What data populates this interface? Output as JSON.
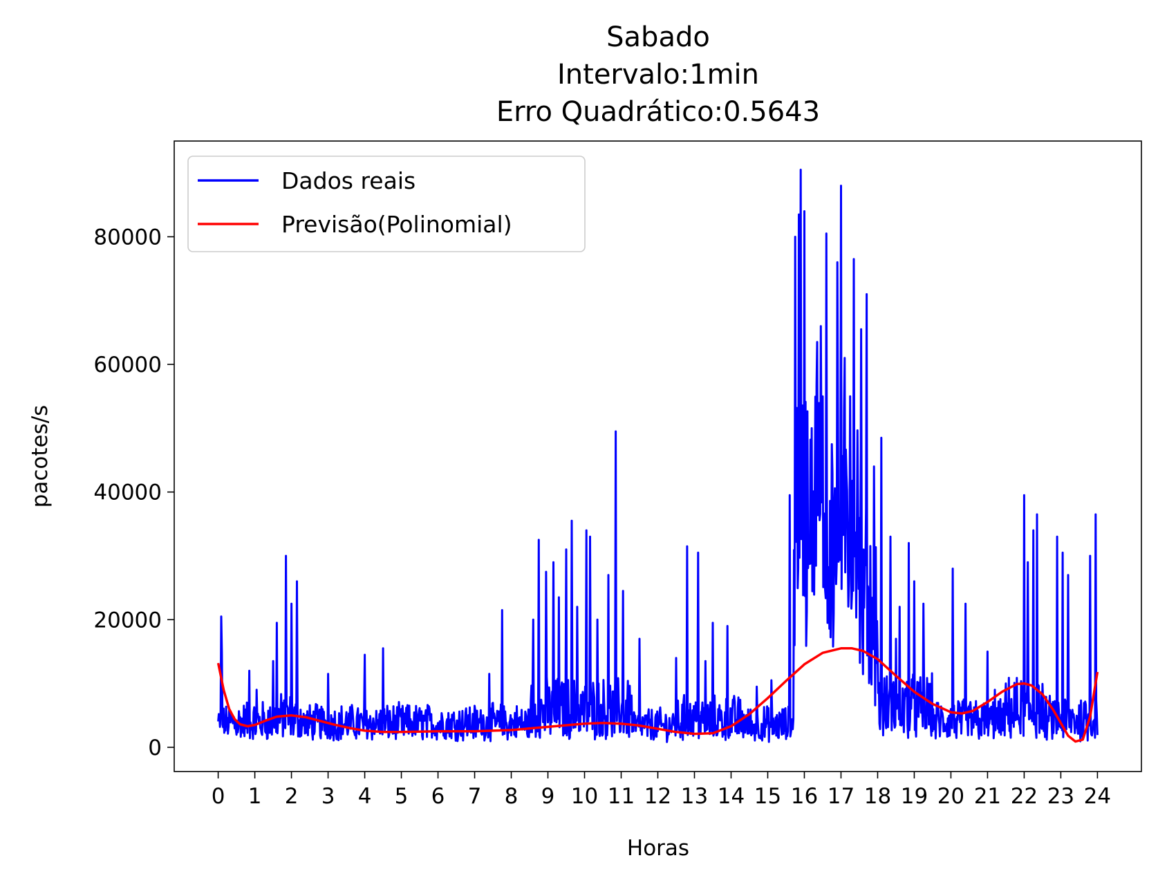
{
  "chart_data": {
    "type": "line",
    "title_lines": [
      "Sabado",
      "Intervalo:1min",
      "Erro Quadrático:0.5643"
    ],
    "xlabel": "Horas",
    "ylabel": "pacotes/s",
    "xlim": [
      -1.2,
      25.2
    ],
    "ylim": [
      -3800,
      95000
    ],
    "x_ticks": [
      0,
      1,
      2,
      3,
      4,
      5,
      6,
      7,
      8,
      9,
      10,
      11,
      12,
      13,
      14,
      15,
      16,
      17,
      18,
      19,
      20,
      21,
      22,
      23,
      24
    ],
    "x_tick_labels": [
      "0",
      "1",
      "2",
      "3",
      "4",
      "5",
      "6",
      "7",
      "8",
      "9",
      "10",
      "11",
      "12",
      "13",
      "14",
      "15",
      "16",
      "17",
      "18",
      "19",
      "20",
      "21",
      "22",
      "23",
      "24"
    ],
    "y_ticks": [
      0,
      20000,
      40000,
      60000,
      80000
    ],
    "y_tick_labels": [
      "0",
      "20000",
      "40000",
      "60000",
      "80000"
    ],
    "grid": false,
    "legend_position": "top-left",
    "series": [
      {
        "name": "Dados reais",
        "color": "#0000ff",
        "segments": [
          {
            "start": 0.0,
            "end": 0.3,
            "base": 3000,
            "amp": 4000
          },
          {
            "start": 0.3,
            "end": 1.5,
            "base": 2200,
            "amp": 5500
          },
          {
            "start": 1.5,
            "end": 2.3,
            "base": 2500,
            "amp": 6500
          },
          {
            "start": 2.3,
            "end": 8.5,
            "base": 2200,
            "amp": 5000
          },
          {
            "start": 8.5,
            "end": 11.3,
            "base": 2500,
            "amp": 9000
          },
          {
            "start": 11.3,
            "end": 12.5,
            "base": 2000,
            "amp": 4500
          },
          {
            "start": 12.5,
            "end": 14.4,
            "base": 2000,
            "amp": 6500
          },
          {
            "start": 14.4,
            "end": 15.7,
            "base": 1800,
            "amp": 5000
          },
          {
            "start": 15.7,
            "end": 16.5,
            "base": 30000,
            "amp": 35000
          },
          {
            "start": 16.5,
            "end": 17.5,
            "base": 30000,
            "amp": 28000
          },
          {
            "start": 17.5,
            "end": 18.0,
            "base": 15000,
            "amp": 25000
          },
          {
            "start": 18.0,
            "end": 19.5,
            "base": 3000,
            "amp": 9000
          },
          {
            "start": 19.5,
            "end": 21.5,
            "base": 2000,
            "amp": 6000
          },
          {
            "start": 21.5,
            "end": 22.5,
            "base": 2500,
            "amp": 9000
          },
          {
            "start": 22.5,
            "end": 24.0,
            "base": 2000,
            "amp": 6500
          }
        ],
        "spikes": [
          [
            0.08,
            20500
          ],
          [
            0.85,
            12000
          ],
          [
            1.5,
            13500
          ],
          [
            1.6,
            19500
          ],
          [
            1.85,
            30000
          ],
          [
            2.0,
            22500
          ],
          [
            2.15,
            26000
          ],
          [
            3.0,
            11500
          ],
          [
            4.0,
            14500
          ],
          [
            4.5,
            15500
          ],
          [
            7.75,
            21500
          ],
          [
            7.4,
            11500
          ],
          [
            8.6,
            20000
          ],
          [
            8.75,
            32500
          ],
          [
            8.95,
            27500
          ],
          [
            9.15,
            29000
          ],
          [
            9.3,
            23500
          ],
          [
            9.5,
            31000
          ],
          [
            9.65,
            35500
          ],
          [
            9.8,
            22000
          ],
          [
            10.05,
            34000
          ],
          [
            10.15,
            33000
          ],
          [
            10.35,
            20000
          ],
          [
            10.65,
            27000
          ],
          [
            10.85,
            49500
          ],
          [
            11.05,
            24500
          ],
          [
            11.5,
            17000
          ],
          [
            12.8,
            31500
          ],
          [
            13.1,
            30500
          ],
          [
            13.5,
            19500
          ],
          [
            13.9,
            19000
          ],
          [
            13.3,
            13500
          ],
          [
            15.6,
            39500
          ],
          [
            15.75,
            80000
          ],
          [
            15.85,
            83500
          ],
          [
            15.9,
            90500
          ],
          [
            16.0,
            84000
          ],
          [
            16.2,
            50000
          ],
          [
            16.35,
            63500
          ],
          [
            16.45,
            66000
          ],
          [
            16.6,
            80500
          ],
          [
            16.75,
            47500
          ],
          [
            16.9,
            76000
          ],
          [
            17.0,
            88000
          ],
          [
            17.1,
            61000
          ],
          [
            17.25,
            55000
          ],
          [
            17.35,
            76500
          ],
          [
            17.55,
            65500
          ],
          [
            17.7,
            71000
          ],
          [
            17.9,
            44000
          ],
          [
            18.1,
            48500
          ],
          [
            18.35,
            33000
          ],
          [
            18.6,
            22000
          ],
          [
            18.85,
            32000
          ],
          [
            19.25,
            22500
          ],
          [
            20.05,
            28000
          ],
          [
            20.4,
            22500
          ],
          [
            21.0,
            15000
          ],
          [
            21.5,
            10000
          ],
          [
            22.0,
            39500
          ],
          [
            22.1,
            29000
          ],
          [
            22.25,
            34000
          ],
          [
            22.35,
            36500
          ],
          [
            22.9,
            33000
          ],
          [
            23.05,
            30500
          ],
          [
            23.2,
            27000
          ],
          [
            23.8,
            30000
          ],
          [
            23.95,
            36500
          ],
          [
            0.1,
            15000
          ],
          [
            1.05,
            9000
          ],
          [
            12.5,
            14000
          ],
          [
            14.7,
            9500
          ],
          [
            15.1,
            10500
          ],
          [
            18.5,
            17000
          ],
          [
            19.0,
            26000
          ],
          [
            21.2,
            9000
          ]
        ]
      },
      {
        "name": "Previsão(Polinomial)",
        "color": "#ff0000",
        "x": [
          0,
          0.15,
          0.3,
          0.45,
          0.6,
          0.8,
          1.0,
          1.3,
          1.6,
          2.0,
          2.4,
          2.8,
          3.2,
          3.6,
          4.0,
          4.5,
          5.0,
          6.0,
          7.0,
          8.0,
          9.0,
          10.0,
          10.5,
          11.0,
          11.5,
          12.0,
          12.5,
          13.0,
          13.5,
          14.0,
          14.5,
          15.0,
          15.5,
          16.0,
          16.5,
          17.0,
          17.3,
          17.6,
          18.0,
          18.5,
          19.0,
          19.5,
          20.0,
          20.3,
          20.6,
          21.0,
          21.4,
          21.8,
          22.0,
          22.2,
          22.5,
          22.8,
          23.0,
          23.2,
          23.4,
          23.6,
          23.8,
          24.0
        ],
        "y": [
          13200,
          9000,
          6000,
          4400,
          3600,
          3300,
          3500,
          4200,
          4800,
          5000,
          4700,
          4100,
          3500,
          3000,
          2600,
          2400,
          2400,
          2500,
          2500,
          2700,
          3200,
          3700,
          3800,
          3700,
          3400,
          2900,
          2400,
          2100,
          2200,
          3300,
          5200,
          7700,
          10400,
          13000,
          14800,
          15500,
          15500,
          15100,
          13800,
          11200,
          8700,
          6800,
          5500,
          5300,
          5700,
          7100,
          8700,
          9900,
          10000,
          9700,
          8300,
          5800,
          3800,
          1800,
          900,
          1200,
          4800,
          11800
        ]
      }
    ]
  },
  "legend": {
    "items": [
      {
        "label": "Dados reais",
        "color": "#0000ff"
      },
      {
        "label": "Previsão(Polinomial)",
        "color": "#ff0000"
      }
    ]
  }
}
